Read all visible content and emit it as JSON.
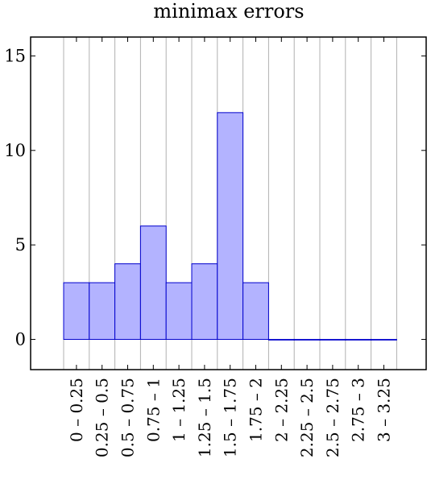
{
  "chart_data": {
    "type": "bar",
    "title": "minimax errors",
    "xlabel": "",
    "ylabel": "",
    "categories": [
      "0 – 0.25",
      "0.25 – 0.5",
      "0.5 – 0.75",
      "0.75 – 1",
      "1 – 1.25",
      "1.25 – 1.5",
      "1.5 – 1.75",
      "1.75 – 2",
      "2 – 2.25",
      "2.25 – 2.5",
      "2.5 – 2.75",
      "2.75 – 3",
      "3 – 3.25"
    ],
    "values": [
      3,
      3,
      4,
      6,
      3,
      4,
      12,
      3,
      0,
      0,
      0,
      0,
      0
    ],
    "ylim": [
      -1.6,
      16
    ],
    "yticks": [
      0,
      5,
      10,
      15
    ],
    "grid": "vertical",
    "legend": "none",
    "colors": {
      "bar_fill": "#b3b3ff",
      "bar_stroke": "#0000cc"
    }
  }
}
